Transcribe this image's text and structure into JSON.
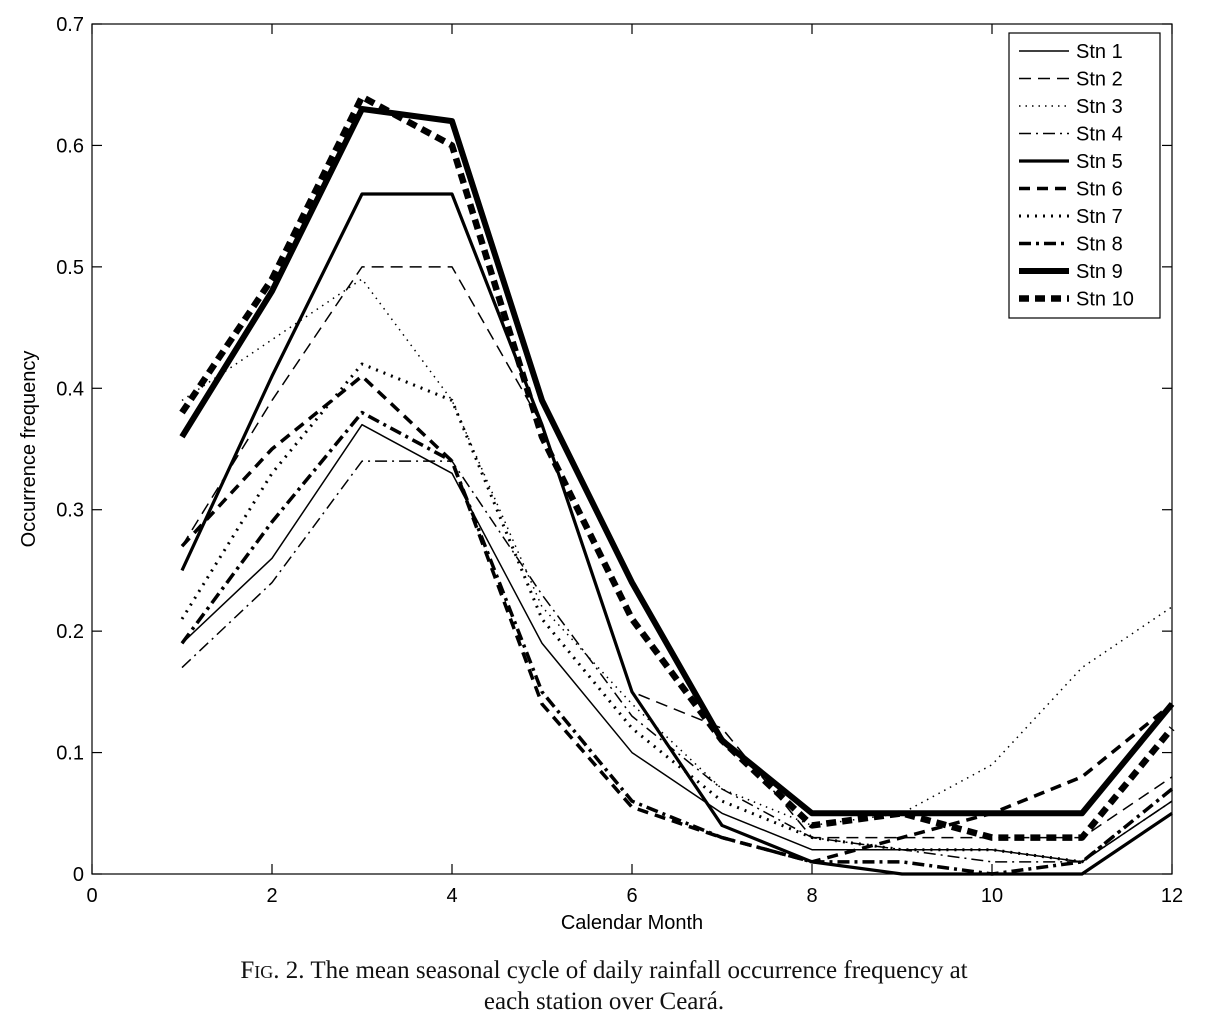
{
  "chart_data": {
    "type": "line",
    "title": "",
    "xlabel": "Calendar Month",
    "ylabel": "Occurrence frequency",
    "xlim": [
      0,
      12
    ],
    "ylim": [
      0,
      0.7
    ],
    "xticks": [
      0,
      2,
      4,
      6,
      8,
      10,
      12
    ],
    "yticks": [
      0,
      0.1,
      0.2,
      0.3,
      0.4,
      0.5,
      0.6,
      0.7
    ],
    "legend_position": "top-right",
    "grid": false,
    "x": [
      1,
      2,
      3,
      4,
      5,
      6,
      7,
      8,
      9,
      10,
      11,
      12
    ],
    "series": [
      {
        "name": "Stn 1",
        "style": "thin-solid",
        "values": [
          0.19,
          0.26,
          0.37,
          0.33,
          0.19,
          0.1,
          0.05,
          0.02,
          0.02,
          0.02,
          0.01,
          0.06
        ]
      },
      {
        "name": "Stn 2",
        "style": "thin-dashed",
        "values": [
          0.27,
          0.39,
          0.5,
          0.5,
          0.37,
          0.15,
          0.12,
          0.03,
          0.03,
          0.03,
          0.03,
          0.08
        ]
      },
      {
        "name": "Stn 3",
        "style": "thin-dotted",
        "values": [
          0.39,
          0.44,
          0.49,
          0.39,
          0.22,
          0.14,
          0.07,
          0.04,
          0.05,
          0.09,
          0.17,
          0.22
        ]
      },
      {
        "name": "Stn 4",
        "style": "thin-dashdot",
        "values": [
          0.17,
          0.24,
          0.34,
          0.34,
          0.23,
          0.13,
          0.07,
          0.03,
          0.02,
          0.01,
          0.01,
          0.06
        ]
      },
      {
        "name": "Stn 5",
        "style": "thick-solid",
        "values": [
          0.25,
          0.41,
          0.56,
          0.56,
          0.37,
          0.15,
          0.04,
          0.01,
          0.0,
          0.0,
          0.0,
          0.05
        ]
      },
      {
        "name": "Stn 6",
        "style": "thick-dashed",
        "values": [
          0.27,
          0.35,
          0.41,
          0.34,
          0.14,
          0.055,
          0.03,
          0.01,
          0.03,
          0.05,
          0.08,
          0.14
        ]
      },
      {
        "name": "Stn 7",
        "style": "thick-dotted",
        "values": [
          0.21,
          0.33,
          0.42,
          0.39,
          0.21,
          0.12,
          0.06,
          0.03,
          0.02,
          0.02,
          0.01,
          0.07
        ]
      },
      {
        "name": "Stn 8",
        "style": "thick-dashdot",
        "values": [
          0.19,
          0.29,
          0.38,
          0.34,
          0.15,
          0.06,
          0.03,
          0.01,
          0.01,
          0.0,
          0.01,
          0.07
        ]
      },
      {
        "name": "Stn 9",
        "style": "heavy-solid",
        "values": [
          0.36,
          0.48,
          0.63,
          0.62,
          0.39,
          0.24,
          0.11,
          0.05,
          0.05,
          0.05,
          0.05,
          0.14
        ]
      },
      {
        "name": "Stn 10",
        "style": "heavy-dashed",
        "values": [
          0.38,
          0.49,
          0.64,
          0.6,
          0.36,
          0.21,
          0.11,
          0.04,
          0.05,
          0.03,
          0.03,
          0.12
        ]
      }
    ]
  },
  "caption": {
    "label": "Fig. 2.",
    "line1": " The mean seasonal cycle of daily rainfall occurrence frequency at",
    "line2": "each station over Ceará."
  }
}
